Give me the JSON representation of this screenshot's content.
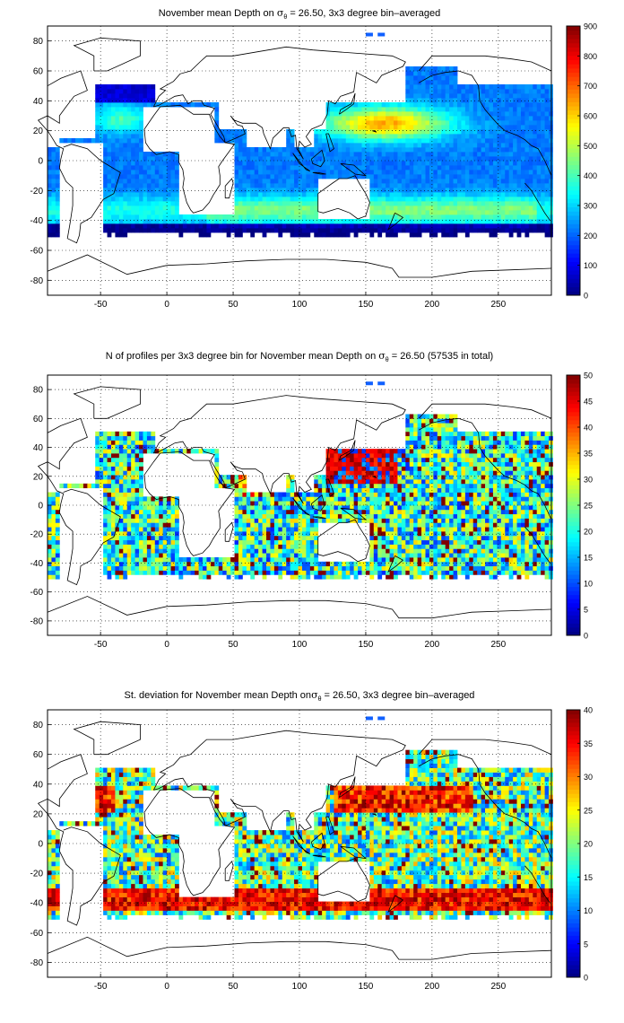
{
  "chart_data": [
    {
      "type": "heatmap",
      "title": "November mean Depth on σθ = 26.50, 3x3 degree bin–averaged",
      "title_parts": {
        "before": "November mean Depth on ",
        "sigma": "σ",
        "sub": "θ",
        "after": " = 26.50, 3x3 degree bin–averaged"
      },
      "xlim": [
        -90,
        290
      ],
      "ylim": [
        -90,
        90
      ],
      "x_ticks": [
        -50,
        0,
        50,
        100,
        150,
        200,
        250
      ],
      "y_ticks": [
        -80,
        -60,
        -40,
        -20,
        0,
        20,
        40,
        60,
        80
      ],
      "grid": true,
      "colorbar": {
        "min": 0,
        "max": 900,
        "ticks": [
          0,
          100,
          200,
          300,
          400,
          500,
          600,
          700,
          800,
          900
        ]
      },
      "variable": "depth"
    },
    {
      "type": "heatmap",
      "title": "N of profiles per 3x3 degree bin for November mean Depth on σθ = 26.50 (57535 in total)",
      "title_parts": {
        "before": "N of profiles per 3x3 degree bin for November mean Depth on ",
        "sigma": "σ",
        "sub": "θ",
        "after": " = 26.50 (57535 in total)"
      },
      "xlim": [
        -90,
        290
      ],
      "ylim": [
        -90,
        90
      ],
      "x_ticks": [
        -50,
        0,
        50,
        100,
        150,
        200,
        250
      ],
      "y_ticks": [
        -80,
        -60,
        -40,
        -20,
        0,
        20,
        40,
        60,
        80
      ],
      "grid": true,
      "colorbar": {
        "min": 0,
        "max": 50,
        "ticks": [
          0,
          5,
          10,
          15,
          20,
          25,
          30,
          35,
          40,
          45,
          50
        ]
      },
      "variable": "count"
    },
    {
      "type": "heatmap",
      "title": "St. deviation for November mean Depth onσθ = 26.50, 3x3 degree bin–averaged",
      "title_parts": {
        "before": "St. deviation for November mean Depth on",
        "sigma": "σ",
        "sub": "θ",
        "after": " = 26.50, 3x3 degree bin–averaged"
      },
      "xlim": [
        -90,
        290
      ],
      "ylim": [
        -90,
        90
      ],
      "x_ticks": [
        -50,
        0,
        50,
        100,
        150,
        200,
        250
      ],
      "y_ticks": [
        -80,
        -60,
        -40,
        -20,
        0,
        20,
        40,
        60,
        80
      ],
      "grid": true,
      "colorbar": {
        "min": 0,
        "max": 40,
        "ticks": [
          0,
          5,
          10,
          15,
          20,
          25,
          30,
          35,
          40
        ]
      },
      "variable": "std"
    }
  ]
}
